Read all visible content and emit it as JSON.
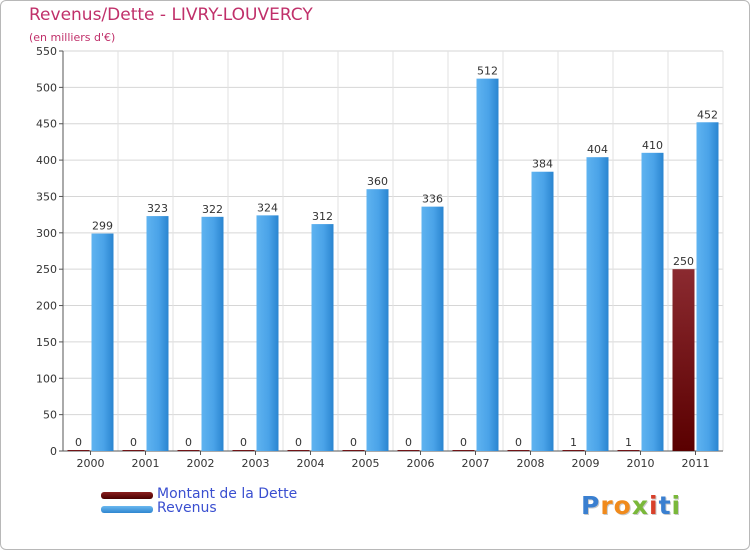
{
  "title": "Revenus/Dette - LIVRY-LOUVERCY",
  "subtitle": "(en milliers d'€)",
  "legend": {
    "debt_label": "Montant de la Dette",
    "revenue_label": "Revenus"
  },
  "logo": {
    "text": "Proxiti"
  },
  "colors": {
    "revenue": "#4aa3e8",
    "revenue_dark": "#1c6eb5",
    "debt": "#8b2a30",
    "debt_dark": "#5a0000",
    "title": "#c0306a",
    "legend_text": "#3a4fd0"
  },
  "chart_data": {
    "type": "bar",
    "title": "Revenus/Dette - LIVRY-LOUVERCY",
    "ylabel": "(en milliers d'€)",
    "categories": [
      "2000",
      "2001",
      "2002",
      "2003",
      "2004",
      "2005",
      "2006",
      "2007",
      "2008",
      "2009",
      "2010",
      "2011"
    ],
    "series": [
      {
        "name": "Montant de la Dette",
        "values": [
          0,
          0,
          0,
          0,
          0,
          0,
          0,
          0,
          0,
          1,
          1,
          250
        ]
      },
      {
        "name": "Revenus",
        "values": [
          299,
          323,
          322,
          324,
          312,
          360,
          336,
          512,
          384,
          404,
          410,
          452
        ]
      }
    ],
    "ylim": [
      0,
      550
    ],
    "yticks": [
      0,
      50,
      100,
      150,
      200,
      250,
      300,
      350,
      400,
      450,
      500,
      550
    ],
    "grid": true,
    "legend_position": "bottom-left"
  }
}
